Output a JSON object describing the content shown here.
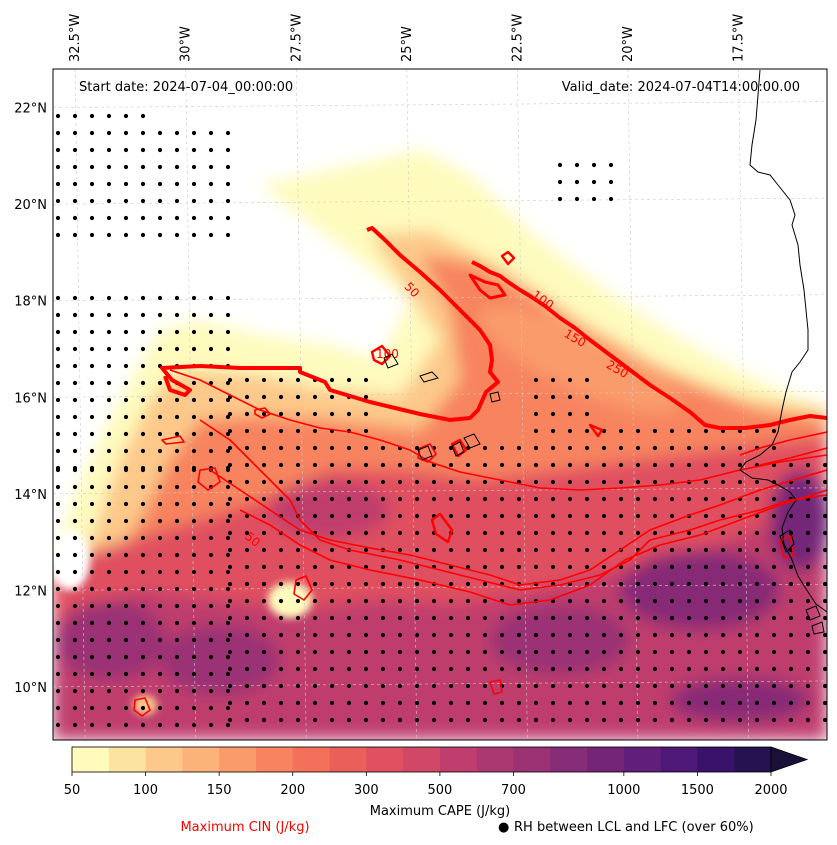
{
  "chart_data": {
    "type": "map-contour",
    "header": {
      "start_date": "Start date: 2024-07-04_00:00:00",
      "valid_date": "Valid_date: 2024-07-04T14:00:00.00"
    },
    "lon_ticks": [
      {
        "value": -32.5,
        "label": "32.5°W"
      },
      {
        "value": -30.0,
        "label": "30°W"
      },
      {
        "value": -27.5,
        "label": "27.5°W"
      },
      {
        "value": -25.0,
        "label": "25°W"
      },
      {
        "value": -22.5,
        "label": "22.5°W"
      },
      {
        "value": -20.0,
        "label": "20°W"
      },
      {
        "value": -17.5,
        "label": "17.5°W"
      }
    ],
    "lat_ticks": [
      {
        "value": 22,
        "label": "22°N"
      },
      {
        "value": 20,
        "label": "20°N"
      },
      {
        "value": 18,
        "label": "18°N"
      },
      {
        "value": 16,
        "label": "16°N"
      },
      {
        "value": 14,
        "label": "14°N"
      },
      {
        "value": 12,
        "label": "12°N"
      },
      {
        "value": 10,
        "label": "10°N"
      }
    ],
    "lon_range": [
      -33.0,
      -15.5
    ],
    "lat_range": [
      8.9,
      22.8
    ],
    "cin_contour_labels": [
      "50",
      "100",
      "150",
      "250",
      "50",
      "100"
    ],
    "colorbar": {
      "label": "Maximum CAPE (J/kg)",
      "levels": [
        50,
        75,
        100,
        125,
        150,
        175,
        200,
        250,
        300,
        400,
        500,
        600,
        700,
        800,
        900,
        1000,
        1250,
        1500,
        1750,
        2000
      ],
      "tick_labels": [
        "50",
        "100",
        "150",
        "200",
        "300",
        "500",
        "700",
        "1000",
        "1500",
        "2000"
      ],
      "colors": [
        "#fefbbd",
        "#fde3a0",
        "#fdc98a",
        "#fcb379",
        "#fa9b6c",
        "#f7845f",
        "#f3705a",
        "#ea5f59",
        "#e05060",
        "#d14866",
        "#bf3e6d",
        "#ac3872",
        "#9a3274",
        "#872c76",
        "#742578",
        "#611e7a",
        "#4d1878",
        "#391269",
        "#261250",
        "#1b1138"
      ],
      "extend": "max"
    },
    "legend": {
      "cin": "Maximum CIN (J/kg)",
      "rh": "RH between LCL and LFC (over 60%)",
      "rh_marker": "●"
    },
    "colors": {
      "cin_line": "#ff0000",
      "coast": "#000000",
      "grid": "#cccccc"
    }
  }
}
